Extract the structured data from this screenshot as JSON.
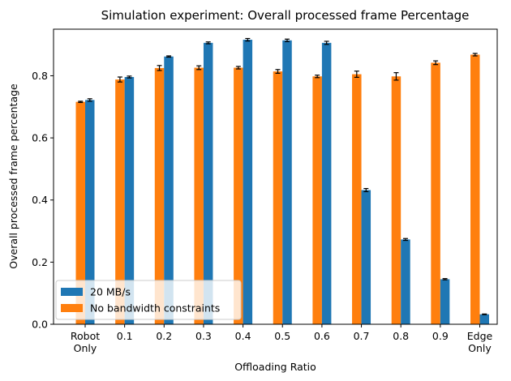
{
  "chart_data": {
    "type": "bar",
    "title": "Simulation experiment: Overall processed frame Percentage",
    "xlabel": "Offloading Ratio",
    "ylabel": "Overall processed frame percentage",
    "categories": [
      [
        "Robot",
        "Only"
      ],
      [
        "0.1"
      ],
      [
        "0.2"
      ],
      [
        "0.3"
      ],
      [
        "0.4"
      ],
      [
        "0.5"
      ],
      [
        "0.6"
      ],
      [
        "0.7"
      ],
      [
        "0.8"
      ],
      [
        "0.9"
      ],
      [
        "Edge",
        "Only"
      ]
    ],
    "ylim": [
      0,
      0.95
    ],
    "yticks": [
      "0.0",
      "0.2",
      "0.4",
      "0.6",
      "0.8"
    ],
    "grid": false,
    "legend_position": "lower-left",
    "series": [
      {
        "name": "20 MB/s",
        "color": "#1f77b4",
        "values": [
          0.722,
          0.796,
          0.862,
          0.906,
          0.916,
          0.914,
          0.906,
          0.432,
          0.273,
          0.145,
          0.032
        ],
        "errors": [
          0.004,
          0.003,
          0.002,
          0.003,
          0.004,
          0.004,
          0.005,
          0.005,
          0.003,
          0.002,
          0.001
        ]
      },
      {
        "name": "No bandwidth constraints",
        "color": "#ff7f0e",
        "values": [
          0.716,
          0.788,
          0.825,
          0.826,
          0.826,
          0.814,
          0.798,
          0.805,
          0.798,
          0.842,
          0.868
        ],
        "errors": [
          0.002,
          0.008,
          0.008,
          0.006,
          0.004,
          0.006,
          0.004,
          0.01,
          0.012,
          0.006,
          0.004
        ]
      }
    ]
  }
}
